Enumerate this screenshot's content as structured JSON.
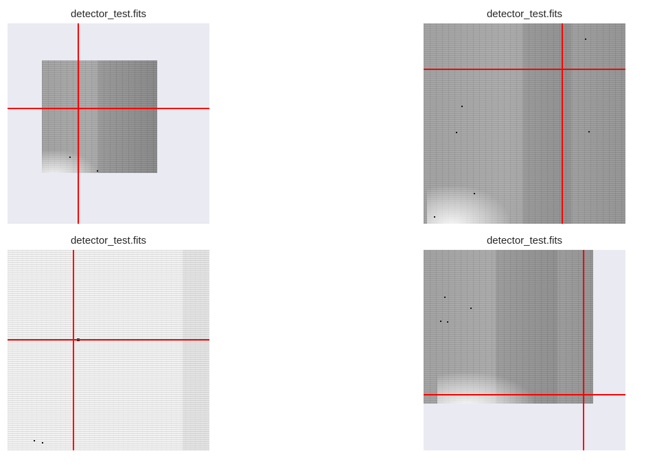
{
  "panels": [
    {
      "title": "detector_test.fits"
    },
    {
      "title": "detector_test.fits"
    },
    {
      "title": "detector_test.fits"
    },
    {
      "title": "detector_test.fits"
    }
  ],
  "colors": {
    "crosshair": "#ff0000",
    "axes_background": "#eaeaf2",
    "title_text": "#262626"
  }
}
